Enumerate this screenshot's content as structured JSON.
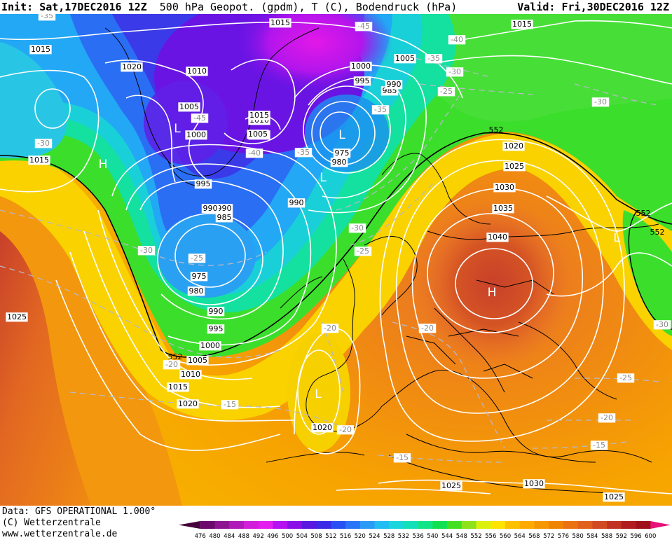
{
  "header": {
    "init_label": "Init:",
    "init_time": "Sat,17DEC2016 12Z",
    "title": "500 hPa Geopot. (gpdm), T (C), Bodendruck (hPa)",
    "valid_label": "Valid:",
    "valid_time": "Fri,30DEC2016 12Z"
  },
  "footer": {
    "data_line": "Data: GFS OPERATIONAL 1.000°",
    "copyright": "(C) Wetterzentrale",
    "website": "www.wetterzentrale.de"
  },
  "legend": {
    "ticks": [
      "476",
      "480",
      "484",
      "488",
      "492",
      "496",
      "500",
      "504",
      "508",
      "512",
      "516",
      "520",
      "524",
      "528",
      "532",
      "536",
      "540",
      "544",
      "548",
      "552",
      "556",
      "560",
      "564",
      "568",
      "572",
      "576",
      "580",
      "584",
      "588",
      "592",
      "596",
      "600"
    ],
    "colors": [
      "#44003a",
      "#6b0a6b",
      "#8e1592",
      "#b01ab8",
      "#d21fd9",
      "#e51ef0",
      "#b412f0",
      "#8a10e8",
      "#5a18e0",
      "#3a2be6",
      "#2950f2",
      "#2a74f7",
      "#2a9af7",
      "#22bdf2",
      "#1ad6dc",
      "#13e0b8",
      "#12e488",
      "#13e050",
      "#43e022",
      "#8de21a",
      "#dcf00e",
      "#ffe400",
      "#ffc000",
      "#ffaa00",
      "#f79700",
      "#f08400",
      "#ea7210",
      "#e0601c",
      "#d24a22",
      "#c23220",
      "#b01c20",
      "#a0101c",
      "#e8107a"
    ]
  },
  "map": {
    "pressure_labels": [
      {
        "text": "1015"
      },
      {
        "text": "1015"
      },
      {
        "text": "1020"
      },
      {
        "text": "1010"
      },
      {
        "text": "1015"
      },
      {
        "text": "1005"
      },
      {
        "text": "1000"
      },
      {
        "text": "995"
      },
      {
        "text": "990"
      },
      {
        "text": "985"
      },
      {
        "text": "975"
      },
      {
        "text": "980"
      },
      {
        "text": "990"
      },
      {
        "text": "995"
      },
      {
        "text": "1000"
      },
      {
        "text": "1005"
      },
      {
        "text": "1010"
      },
      {
        "text": "1015"
      },
      {
        "text": "1020"
      },
      {
        "text": "1025"
      },
      {
        "text": "1010"
      },
      {
        "text": "1015"
      },
      {
        "text": "1015"
      },
      {
        "text": "1005"
      },
      {
        "text": "1000"
      },
      {
        "text": "990"
      },
      {
        "text": "1000"
      },
      {
        "text": "995"
      },
      {
        "text": "985"
      },
      {
        "text": "990"
      },
      {
        "text": "975"
      },
      {
        "text": "980"
      },
      {
        "text": "990"
      },
      {
        "text": "1005"
      },
      {
        "text": "1020"
      },
      {
        "text": "1025"
      },
      {
        "text": "1030"
      },
      {
        "text": "1035"
      },
      {
        "text": "1040"
      },
      {
        "text": "1020"
      },
      {
        "text": "1025"
      },
      {
        "text": "1030"
      },
      {
        "text": "1025"
      }
    ],
    "temperature_labels": [
      {
        "text": "-35"
      },
      {
        "text": "-30"
      },
      {
        "text": "-45"
      },
      {
        "text": "-40"
      },
      {
        "text": "-35"
      },
      {
        "text": "-45"
      },
      {
        "text": "-40"
      },
      {
        "text": "-35"
      },
      {
        "text": "-35"
      },
      {
        "text": "-30"
      },
      {
        "text": "-25"
      },
      {
        "text": "-30"
      },
      {
        "text": "-30"
      },
      {
        "text": "-25"
      },
      {
        "text": "-30"
      },
      {
        "text": "-25"
      },
      {
        "text": "-20"
      },
      {
        "text": "-20"
      },
      {
        "text": "-20"
      },
      {
        "text": "-15"
      },
      {
        "text": "-20"
      },
      {
        "text": "-15"
      },
      {
        "text": "-25"
      },
      {
        "text": "-20"
      },
      {
        "text": "-15"
      },
      {
        "text": "-30"
      }
    ],
    "geopotential_labels": [
      {
        "text": "552"
      },
      {
        "text": "552"
      },
      {
        "text": "552"
      },
      {
        "text": "552"
      }
    ],
    "centers": [
      {
        "text": "H"
      },
      {
        "text": "L"
      },
      {
        "text": "L"
      },
      {
        "text": "L"
      },
      {
        "text": "L"
      },
      {
        "text": "H"
      },
      {
        "text": "L"
      }
    ]
  }
}
